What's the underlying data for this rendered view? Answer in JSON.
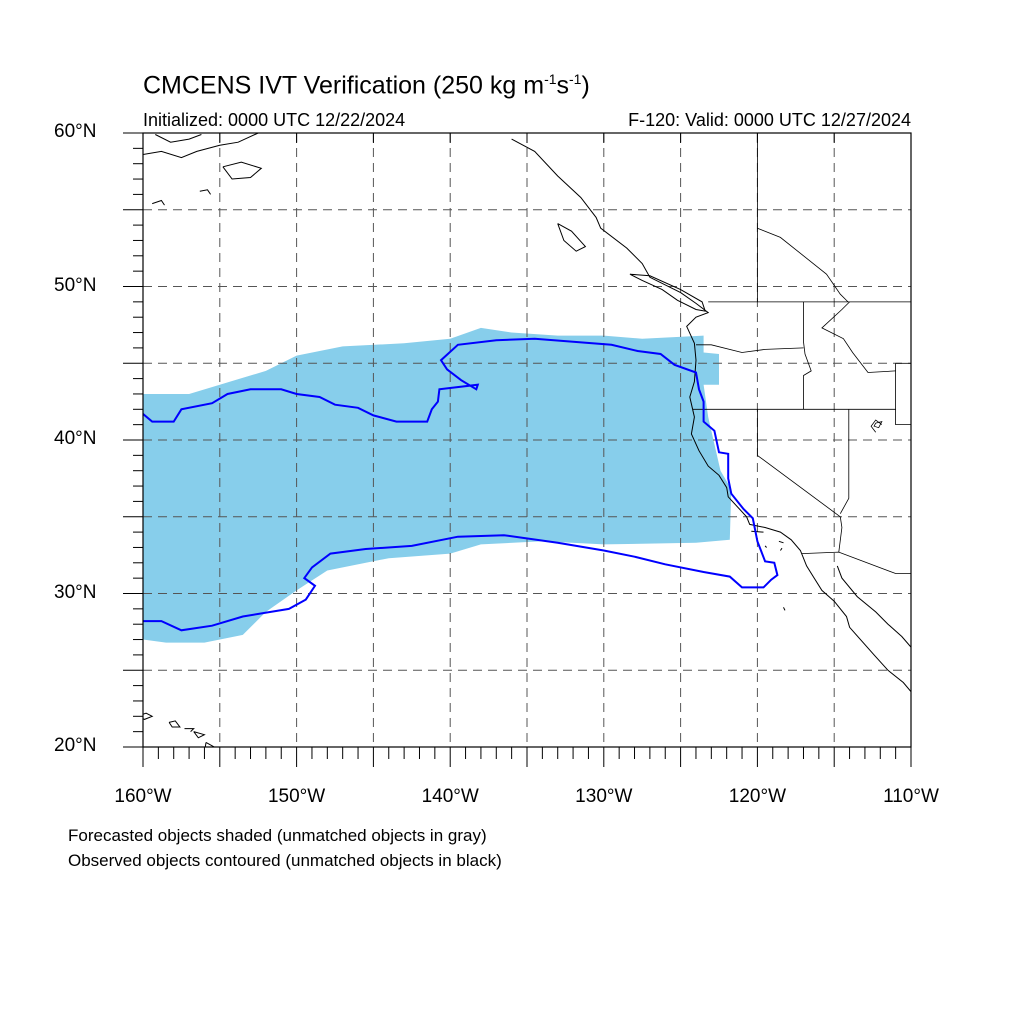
{
  "header": {
    "title_main": "CMCENS IVT Verification (250 kg m",
    "title_sup1": "-1",
    "title_mid": "s",
    "title_sup2": "-1",
    "title_end": ")",
    "initialized": "Initialized: 0000 UTC 12/22/2024",
    "valid": "F-120: Valid: 0000 UTC 12/27/2024"
  },
  "map": {
    "lon_range": [
      -160,
      -110
    ],
    "lat_range": [
      20,
      60
    ],
    "grid_lons": [
      -155,
      -150,
      -145,
      -140,
      -135,
      -130,
      -125,
      -120,
      -115
    ],
    "grid_lats": [
      25,
      30,
      35,
      40,
      45,
      50,
      55
    ],
    "lat_labels": [
      {
        "lat": 60,
        "text": "60°N"
      },
      {
        "lat": 50,
        "text": "50°N"
      },
      {
        "lat": 40,
        "text": "40°N"
      },
      {
        "lat": 30,
        "text": "30°N"
      },
      {
        "lat": 20,
        "text": "20°N"
      }
    ],
    "lon_labels": [
      {
        "lon": -160,
        "text": "160°W"
      },
      {
        "lon": -150,
        "text": "150°W"
      },
      {
        "lon": -140,
        "text": "140°W"
      },
      {
        "lon": -130,
        "text": "130°W"
      },
      {
        "lon": -120,
        "text": "120°W"
      },
      {
        "lon": -110,
        "text": "110°W"
      }
    ],
    "colors": {
      "forecast_fill": "#87ceeb",
      "observed_contour": "#0000ff",
      "coastline": "#000000",
      "grid": "#555555"
    },
    "forecast_object": [
      [
        -160,
        43.0
      ],
      [
        -157,
        43.0
      ],
      [
        -155,
        43.6
      ],
      [
        -152,
        44.5
      ],
      [
        -150,
        45.5
      ],
      [
        -147,
        46.1
      ],
      [
        -143,
        46.3
      ],
      [
        -140,
        46.6
      ],
      [
        -138,
        47.3
      ],
      [
        -136,
        47.0
      ],
      [
        -133,
        46.8
      ],
      [
        -130,
        46.8
      ],
      [
        -127.5,
        46.6
      ],
      [
        -123.5,
        46.8
      ],
      [
        -123.5,
        45.7
      ],
      [
        -122.5,
        45.6
      ],
      [
        -122.5,
        43.6
      ],
      [
        -123.5,
        43.6
      ],
      [
        -123.2,
        41.5
      ],
      [
        -122.4,
        38.0
      ],
      [
        -121.7,
        36.8
      ],
      [
        -121.8,
        33.5
      ],
      [
        -124,
        33.3
      ],
      [
        -130,
        33.2
      ],
      [
        -134,
        33.4
      ],
      [
        -138,
        33.2
      ],
      [
        -140,
        32.6
      ],
      [
        -144,
        32.3
      ],
      [
        -148,
        31.5
      ],
      [
        -150,
        30.2
      ],
      [
        -152,
        28.8
      ],
      [
        -153.5,
        27.3
      ],
      [
        -156,
        26.8
      ],
      [
        -158.5,
        26.8
      ],
      [
        -160,
        27.0
      ]
    ],
    "observed_object": [
      [
        -160,
        41.7
      ],
      [
        -159.4,
        41.2
      ],
      [
        -158,
        41.2
      ],
      [
        -157.5,
        42.0
      ],
      [
        -155.5,
        42.4
      ],
      [
        -154.5,
        43.0
      ],
      [
        -153,
        43.3
      ],
      [
        -151,
        43.3
      ],
      [
        -150,
        43.0
      ],
      [
        -148.5,
        42.8
      ],
      [
        -147.5,
        42.3
      ],
      [
        -146,
        42.1
      ],
      [
        -145,
        41.6
      ],
      [
        -143.5,
        41.2
      ],
      [
        -141.5,
        41.2
      ],
      [
        -141.2,
        42.0
      ],
      [
        -140.8,
        42.5
      ],
      [
        -140.7,
        43.3
      ],
      [
        -138.2,
        43.6
      ],
      [
        -138.3,
        43.3
      ],
      [
        -139.3,
        43.9
      ],
      [
        -140.2,
        44.6
      ],
      [
        -140.6,
        45.2
      ],
      [
        -139.5,
        46.2
      ],
      [
        -137,
        46.5
      ],
      [
        -134.5,
        46.6
      ],
      [
        -132,
        46.4
      ],
      [
        -129.5,
        46.2
      ],
      [
        -127.8,
        45.8
      ],
      [
        -126.3,
        45.6
      ],
      [
        -125.4,
        44.9
      ],
      [
        -124.0,
        44.4
      ],
      [
        -123.8,
        43.3
      ],
      [
        -123.5,
        42.5
      ],
      [
        -123.5,
        41.2
      ],
      [
        -122.8,
        40.6
      ],
      [
        -122.5,
        39.2
      ],
      [
        -121.9,
        39.1
      ],
      [
        -121.9,
        37.5
      ],
      [
        -121.7,
        36.5
      ],
      [
        -120.9,
        35.5
      ],
      [
        -120.3,
        34.9
      ],
      [
        -120.0,
        33.4
      ],
      [
        -119.5,
        32.1
      ],
      [
        -118.9,
        32.0
      ],
      [
        -118.7,
        31.2
      ],
      [
        -119.1,
        30.9
      ],
      [
        -119.6,
        30.4
      ],
      [
        -121.0,
        30.4
      ],
      [
        -121.8,
        31.1
      ],
      [
        -123.5,
        31.4
      ],
      [
        -126.0,
        31.9
      ],
      [
        -128.0,
        32.4
      ],
      [
        -130.0,
        32.8
      ],
      [
        -133.0,
        33.3
      ],
      [
        -136.5,
        33.8
      ],
      [
        -139.5,
        33.7
      ],
      [
        -142.5,
        33.1
      ],
      [
        -145.5,
        32.9
      ],
      [
        -147.8,
        32.6
      ],
      [
        -149.0,
        31.7
      ],
      [
        -149.5,
        31.0
      ],
      [
        -148.8,
        30.5
      ],
      [
        -149.4,
        29.6
      ],
      [
        -150.5,
        29.0
      ],
      [
        -153.5,
        28.5
      ],
      [
        -155.5,
        27.9
      ],
      [
        -157.5,
        27.6
      ],
      [
        -158.8,
        28.2
      ],
      [
        -160,
        28.2
      ]
    ],
    "coastline": [
      [
        -136,
        59.6
      ],
      [
        -134.5,
        58.8
      ],
      [
        -133.0,
        57.2
      ],
      [
        -131.5,
        55.8
      ],
      [
        -130.5,
        54.5
      ],
      [
        -130.2,
        53.8
      ],
      [
        -128.5,
        52.5
      ],
      [
        -127.5,
        51.5
      ],
      [
        -127.0,
        50.6
      ],
      [
        -125.0,
        49.6
      ],
      [
        -124.0,
        48.9
      ],
      [
        -123.2,
        48.3
      ],
      [
        -124.0,
        48.0
      ],
      [
        -124.6,
        47.4
      ],
      [
        -124.1,
        46.3
      ],
      [
        -124.0,
        45.2
      ],
      [
        -124.1,
        43.8
      ],
      [
        -124.4,
        42.8
      ],
      [
        -124.1,
        41.5
      ],
      [
        -124.3,
        40.4
      ],
      [
        -123.8,
        39.3
      ],
      [
        -123.2,
        38.3
      ],
      [
        -122.5,
        37.7
      ],
      [
        -122.0,
        36.9
      ],
      [
        -121.9,
        36.3
      ],
      [
        -120.7,
        35.0
      ],
      [
        -120.5,
        34.5
      ],
      [
        -119.5,
        34.3
      ],
      [
        -118.5,
        34.0
      ],
      [
        -117.8,
        33.5
      ],
      [
        -117.2,
        32.8
      ],
      [
        -116.8,
        31.8
      ],
      [
        -116.3,
        31.0
      ],
      [
        -115.8,
        30.2
      ],
      [
        -115.0,
        29.5
      ],
      [
        -114.2,
        28.5
      ],
      [
        -114.0,
        27.8
      ],
      [
        -113.2,
        26.9
      ],
      [
        -112.4,
        26.0
      ],
      [
        -111.5,
        25.0
      ],
      [
        -110.5,
        24.2
      ],
      [
        -110,
        23.6
      ]
    ],
    "gulf_coast": [
      [
        -114.8,
        31.8
      ],
      [
        -114.5,
        31.0
      ],
      [
        -113.5,
        29.8
      ],
      [
        -112.3,
        28.8
      ],
      [
        -111.5,
        28.0
      ],
      [
        -110.6,
        27.2
      ],
      [
        -110,
        26.5
      ]
    ],
    "vancouver_island": [
      [
        -128.3,
        50.8
      ],
      [
        -127.5,
        50.4
      ],
      [
        -126.2,
        49.8
      ],
      [
        -125.2,
        49.1
      ],
      [
        -124.0,
        48.5
      ],
      [
        -123.4,
        48.4
      ],
      [
        -123.6,
        49.0
      ],
      [
        -125.0,
        49.8
      ],
      [
        -127.0,
        50.7
      ],
      [
        -128.3,
        50.8
      ]
    ],
    "haida_gwaii": [
      [
        -133.0,
        54.1
      ],
      [
        -132.1,
        53.6
      ],
      [
        -131.2,
        52.6
      ],
      [
        -131.8,
        52.3
      ],
      [
        -132.6,
        53.0
      ],
      [
        -133.0,
        54.1
      ]
    ],
    "alaska_coast": [
      [
        -160,
        58.6
      ],
      [
        -158.8,
        58.8
      ],
      [
        -157.5,
        58.4
      ],
      [
        -156.5,
        58.8
      ],
      [
        -155.0,
        59.2
      ],
      [
        -153.8,
        59.4
      ],
      [
        -152.5,
        60.0
      ]
    ],
    "alaska_coast2": [
      [
        -159.2,
        59.9
      ],
      [
        -158.2,
        59.4
      ],
      [
        -157.0,
        59.6
      ],
      [
        -156.2,
        59.9
      ]
    ],
    "kodiak": [
      [
        -154.8,
        57.8
      ],
      [
        -153.6,
        58.1
      ],
      [
        -152.3,
        57.7
      ],
      [
        -153.0,
        57.1
      ],
      [
        -154.2,
        57.0
      ],
      [
        -154.8,
        57.8
      ]
    ],
    "alaska_islands": [
      [
        [
          -159.4,
          55.4
        ],
        [
          -158.8,
          55.6
        ],
        [
          -158.6,
          55.3
        ]
      ],
      [
        [
          -156.3,
          56.2
        ],
        [
          -155.8,
          56.3
        ],
        [
          -155.6,
          56.0
        ]
      ]
    ],
    "hawaii": [
      [
        [
          -160.4,
          22.0
        ],
        [
          -159.8,
          22.2
        ],
        [
          -159.4,
          22.0
        ],
        [
          -159.9,
          21.8
        ],
        [
          -160.4,
          22.0
        ]
      ],
      [
        [
          -158.3,
          21.6
        ],
        [
          -157.9,
          21.7
        ],
        [
          -157.6,
          21.3
        ],
        [
          -158.1,
          21.3
        ],
        [
          -158.3,
          21.6
        ]
      ],
      [
        [
          -157.3,
          21.2
        ],
        [
          -156.7,
          21.2
        ],
        [
          -156.9,
          21.0
        ]
      ],
      [
        [
          -156.7,
          21.0
        ],
        [
          -156.0,
          20.8
        ],
        [
          -156.4,
          20.6
        ],
        [
          -156.7,
          21.0
        ]
      ],
      [
        [
          -155.9,
          20.3
        ],
        [
          -155.0,
          19.8
        ],
        [
          -155.6,
          19.2
        ],
        [
          -156.0,
          19.6
        ],
        [
          -155.9,
          20.3
        ]
      ]
    ],
    "channel_islands": [
      [
        [
          -120.4,
          34.05
        ],
        [
          -119.6,
          34.0
        ]
      ],
      [
        [
          -118.6,
          33.4
        ],
        [
          -118.3,
          33.3
        ]
      ],
      [
        [
          -119.5,
          33.1
        ],
        [
          -119.4,
          33.0
        ]
      ],
      [
        [
          -118.4,
          32.95
        ],
        [
          -118.5,
          32.8
        ]
      ],
      [
        [
          -118.3,
          29.1
        ],
        [
          -118.2,
          28.9
        ]
      ]
    ],
    "canada_us_border": [
      [
        -123.2,
        49.0
      ],
      [
        -110,
        49.0
      ]
    ],
    "state_lines": [
      [
        [
          -124.0,
          46.2
        ],
        [
          -123.0,
          46.2
        ],
        [
          -121.0,
          45.7
        ],
        [
          -119.5,
          45.9
        ],
        [
          -117.0,
          46.0
        ]
      ],
      [
        [
          -117.0,
          49.0
        ],
        [
          -117.0,
          46.4
        ],
        [
          -116.9,
          45.6
        ],
        [
          -116.5,
          44.5
        ],
        [
          -117.0,
          44.2
        ],
        [
          -117.0,
          42.0
        ]
      ],
      [
        [
          -124.2,
          42.0
        ],
        [
          -111.0,
          42.0
        ]
      ],
      [
        [
          -120.0,
          42.0
        ],
        [
          -120.0,
          39.0
        ],
        [
          -114.6,
          35.0
        ],
        [
          -114.5,
          34.3
        ],
        [
          -114.7,
          32.7
        ]
      ],
      [
        [
          -114.05,
          42.0
        ],
        [
          -114.05,
          36.2
        ],
        [
          -114.6,
          35.2
        ]
      ],
      [
        [
          -117.1,
          32.6
        ],
        [
          -114.7,
          32.7
        ],
        [
          -111.0,
          31.3
        ],
        [
          -110,
          31.3
        ]
      ],
      [
        [
          -111.0,
          45.0
        ],
        [
          -110,
          45.0
        ]
      ],
      [
        [
          -111.0,
          45.0
        ],
        [
          -111.0,
          41.0
        ],
        [
          -110,
          41.0
        ]
      ],
      [
        [
          -114.0,
          49.0
        ],
        [
          -114.5,
          48.5
        ],
        [
          -115.8,
          47.3
        ],
        [
          -114.4,
          46.6
        ],
        [
          -113.8,
          45.7
        ],
        [
          -112.8,
          44.4
        ],
        [
          -111.0,
          44.5
        ]
      ],
      [
        [
          -120.0,
          60.0
        ],
        [
          -120.0,
          49.0
        ]
      ],
      [
        [
          -120.0,
          53.8
        ],
        [
          -118.5,
          53.2
        ],
        [
          -117.0,
          52.0
        ],
        [
          -115.5,
          50.8
        ],
        [
          -114.6,
          49.5
        ],
        [
          -114.1,
          49.0
        ]
      ],
      [
        [
          -111.9,
          41.0
        ],
        [
          -112.3,
          41.3
        ],
        [
          -112.6,
          40.9
        ],
        [
          -112.3,
          40.5
        ]
      ]
    ],
    "lakes": [
      [
        [
          -112.3,
          41.1
        ],
        [
          -111.9,
          41.2
        ],
        [
          -112.1,
          40.8
        ],
        [
          -112.4,
          40.9
        ],
        [
          -112.3,
          41.1
        ]
      ]
    ]
  },
  "footnotes": {
    "line1": "Forecasted objects shaded (unmatched objects in gray)",
    "line2": "Observed objects contoured (unmatched objects in black)"
  }
}
